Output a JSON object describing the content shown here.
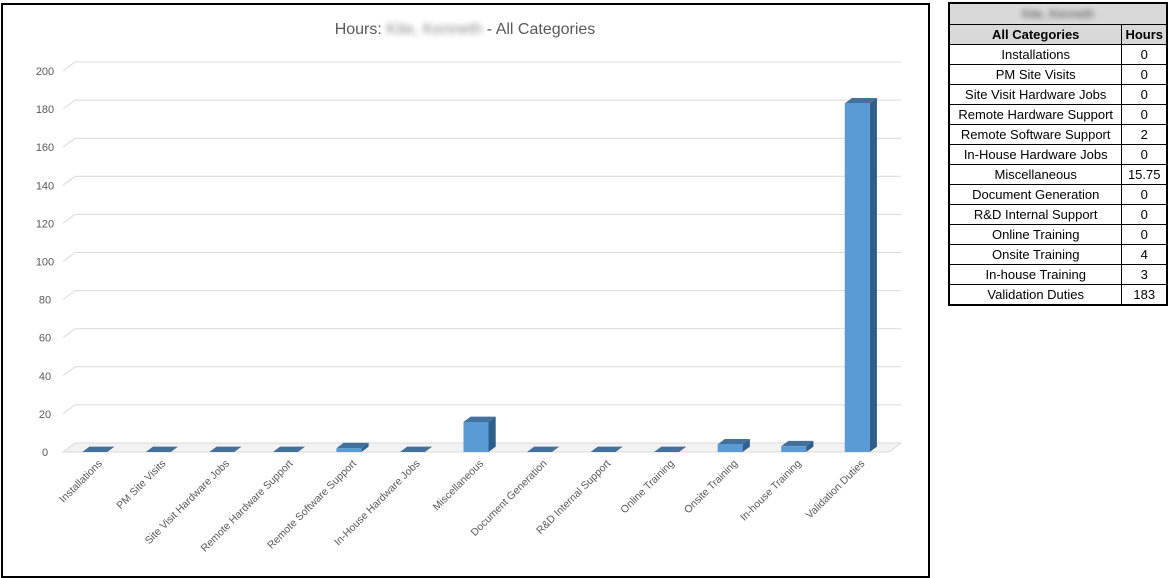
{
  "chart_data": {
    "type": "bar",
    "title_prefix": "Hours: ",
    "title_name": "Kite, Kenneth",
    "title_suffix": " - All Categories",
    "categories": [
      "Installations",
      "PM Site Visits",
      "Site Visit Hardware Jobs",
      "Remote Hardware Support",
      "Remote Software Support",
      "In-House Hardware Jobs",
      "Miscellaneous",
      "Document Generation",
      "R&D Internal Support",
      "Online Training",
      "Onsite Training",
      "In-house Training",
      "Validation Duties"
    ],
    "values": [
      0,
      0,
      0,
      0,
      2,
      0,
      15.75,
      0,
      0,
      0,
      4,
      3,
      183
    ],
    "ylim": [
      0,
      200
    ],
    "yticks": [
      0,
      20,
      40,
      60,
      80,
      100,
      120,
      140,
      160,
      180,
      200
    ],
    "grid": true,
    "bar_color": "#5b9bd5",
    "bar_side_color": "#2e5f8a",
    "bar_top_color": "#41719c"
  },
  "table": {
    "person_name": "Kite, Kenneth",
    "header_category": "All Categories",
    "header_hours": "Hours",
    "rows": [
      {
        "category": "Installations",
        "hours": "0"
      },
      {
        "category": "PM Site Visits",
        "hours": "0"
      },
      {
        "category": "Site Visit Hardware Jobs",
        "hours": "0"
      },
      {
        "category": "Remote Hardware Support",
        "hours": "0"
      },
      {
        "category": "Remote Software Support",
        "hours": "2"
      },
      {
        "category": "In-House Hardware Jobs",
        "hours": "0"
      },
      {
        "category": "Miscellaneous",
        "hours": "15.75"
      },
      {
        "category": "Document Generation",
        "hours": "0"
      },
      {
        "category": "R&D Internal Support",
        "hours": "0"
      },
      {
        "category": "Online Training",
        "hours": "0"
      },
      {
        "category": "Onsite Training",
        "hours": "4"
      },
      {
        "category": "In-house Training",
        "hours": "3"
      },
      {
        "category": "Validation Duties",
        "hours": "183"
      }
    ]
  }
}
